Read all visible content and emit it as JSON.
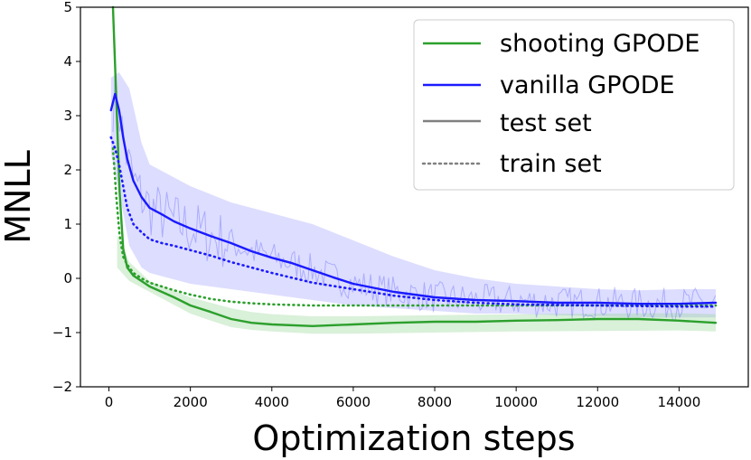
{
  "chart_data": {
    "type": "line",
    "title": "",
    "xlabel": "Optimization steps",
    "ylabel": "MNLL",
    "xlim": [
      -700,
      15700
    ],
    "ylim": [
      -2,
      5
    ],
    "xticks": [
      0,
      2000,
      4000,
      6000,
      8000,
      10000,
      12000,
      14000
    ],
    "yticks": [
      -2,
      -1,
      0,
      1,
      2,
      3,
      4,
      5
    ],
    "ytick_labels": [
      "−2",
      "−1",
      "0",
      "1",
      "2",
      "3",
      "4",
      "5"
    ],
    "legend": {
      "position": "top-right",
      "entries": [
        {
          "label": "shooting GPODE",
          "color": "#2ca02c",
          "style": "solid"
        },
        {
          "label": "vanilla GPODE",
          "color": "#1a1aff",
          "style": "solid"
        },
        {
          "label": "test set",
          "color": "#808080",
          "style": "solid"
        },
        {
          "label": "train set",
          "color": "#808080",
          "style": "dotted"
        }
      ]
    },
    "colors": {
      "shooting": "#2ca02c",
      "vanilla": "#1a1aff",
      "vanilla_band": "#b3b3ff",
      "shooting_band": "#9fd99f"
    },
    "series": [
      {
        "name": "shooting GPODE test",
        "color": "#2ca02c",
        "style": "solid",
        "x": [
          100,
          180,
          260,
          350,
          450,
          600,
          800,
          1000,
          1300,
          1600,
          2000,
          2500,
          3000,
          3500,
          4000,
          5000,
          6000,
          7000,
          8000,
          9000,
          10000,
          11000,
          12000,
          13000,
          14000,
          14900
        ],
        "y": [
          5.0,
          3.3,
          1.6,
          0.55,
          0.2,
          0.05,
          -0.05,
          -0.15,
          -0.25,
          -0.35,
          -0.5,
          -0.62,
          -0.75,
          -0.82,
          -0.85,
          -0.88,
          -0.85,
          -0.82,
          -0.8,
          -0.8,
          -0.78,
          -0.77,
          -0.75,
          -0.75,
          -0.78,
          -0.82
        ]
      },
      {
        "name": "shooting GPODE train",
        "color": "#2ca02c",
        "style": "dotted",
        "x": [
          100,
          180,
          260,
          350,
          450,
          600,
          800,
          1000,
          1300,
          1600,
          2000,
          2500,
          3000,
          3500,
          4000,
          5000,
          6000,
          7000,
          8000,
          10000,
          12000,
          14000,
          14900
        ],
        "y": [
          2.4,
          1.5,
          0.8,
          0.4,
          0.25,
          0.1,
          0.0,
          -0.08,
          -0.15,
          -0.22,
          -0.3,
          -0.38,
          -0.43,
          -0.46,
          -0.48,
          -0.5,
          -0.5,
          -0.5,
          -0.5,
          -0.5,
          -0.5,
          -0.5,
          -0.5
        ]
      },
      {
        "name": "vanilla GPODE test",
        "color": "#1a1aff",
        "style": "solid",
        "x": [
          50,
          150,
          250,
          350,
          450,
          600,
          800,
          1000,
          1300,
          1600,
          2000,
          2500,
          3000,
          3500,
          4000,
          4500,
          5000,
          5500,
          6000,
          7000,
          8000,
          9000,
          10000,
          11000,
          12000,
          13000,
          14000,
          14900
        ],
        "y": [
          3.1,
          3.4,
          3.1,
          2.6,
          2.2,
          1.8,
          1.5,
          1.3,
          1.18,
          1.05,
          0.92,
          0.78,
          0.65,
          0.5,
          0.38,
          0.28,
          0.15,
          0.02,
          -0.1,
          -0.25,
          -0.35,
          -0.4,
          -0.42,
          -0.45,
          -0.45,
          -0.47,
          -0.47,
          -0.45
        ]
      },
      {
        "name": "vanilla GPODE train",
        "color": "#1a1aff",
        "style": "dotted",
        "x": [
          50,
          150,
          250,
          350,
          450,
          600,
          800,
          1000,
          1300,
          1600,
          2000,
          2500,
          3000,
          4000,
          5000,
          6000,
          7000,
          8000,
          9000,
          10000,
          12000,
          14000,
          14900
        ],
        "y": [
          2.6,
          2.4,
          2.1,
          1.7,
          1.3,
          1.0,
          0.85,
          0.72,
          0.65,
          0.6,
          0.52,
          0.42,
          0.3,
          0.1,
          -0.08,
          -0.2,
          -0.32,
          -0.4,
          -0.45,
          -0.48,
          -0.5,
          -0.52,
          -0.52
        ]
      }
    ],
    "bands": [
      {
        "name": "vanilla GPODE spread",
        "color": "#b3b3ff",
        "x": [
          50,
          250,
          500,
          800,
          1000,
          1500,
          2000,
          2500,
          3000,
          3500,
          4000,
          5000,
          6000,
          7000,
          8000,
          9000,
          10000,
          11000,
          12000,
          13000,
          14000,
          14900
        ],
        "upper": [
          3.7,
          3.8,
          3.5,
          2.5,
          2.1,
          1.9,
          1.7,
          1.55,
          1.4,
          1.3,
          1.2,
          1.0,
          0.7,
          0.4,
          0.15,
          0.0,
          -0.1,
          -0.15,
          -0.2,
          -0.22,
          -0.2,
          -0.2
        ],
        "lower": [
          2.3,
          1.6,
          0.6,
          0.2,
          0.1,
          0.0,
          -0.1,
          -0.15,
          -0.2,
          -0.25,
          -0.3,
          -0.4,
          -0.5,
          -0.55,
          -0.6,
          -0.65,
          -0.65,
          -0.68,
          -0.7,
          -0.72,
          -0.72,
          -0.72
        ]
      },
      {
        "name": "shooting GPODE spread",
        "color": "#9fd99f",
        "x": [
          200,
          500,
          1000,
          1500,
          2000,
          2500,
          3000,
          3500,
          4000,
          5000,
          6000,
          8000,
          10000,
          12000,
          14000,
          14900
        ],
        "upper": [
          0.8,
          0.3,
          -0.05,
          -0.2,
          -0.35,
          -0.45,
          -0.55,
          -0.62,
          -0.66,
          -0.7,
          -0.7,
          -0.68,
          -0.66,
          -0.65,
          -0.64,
          -0.66
        ],
        "lower": [
          0.2,
          -0.05,
          -0.25,
          -0.45,
          -0.65,
          -0.78,
          -0.9,
          -0.95,
          -0.98,
          -1.02,
          -1.02,
          -1.0,
          -0.98,
          -0.97,
          -0.96,
          -0.98
        ]
      }
    ]
  }
}
